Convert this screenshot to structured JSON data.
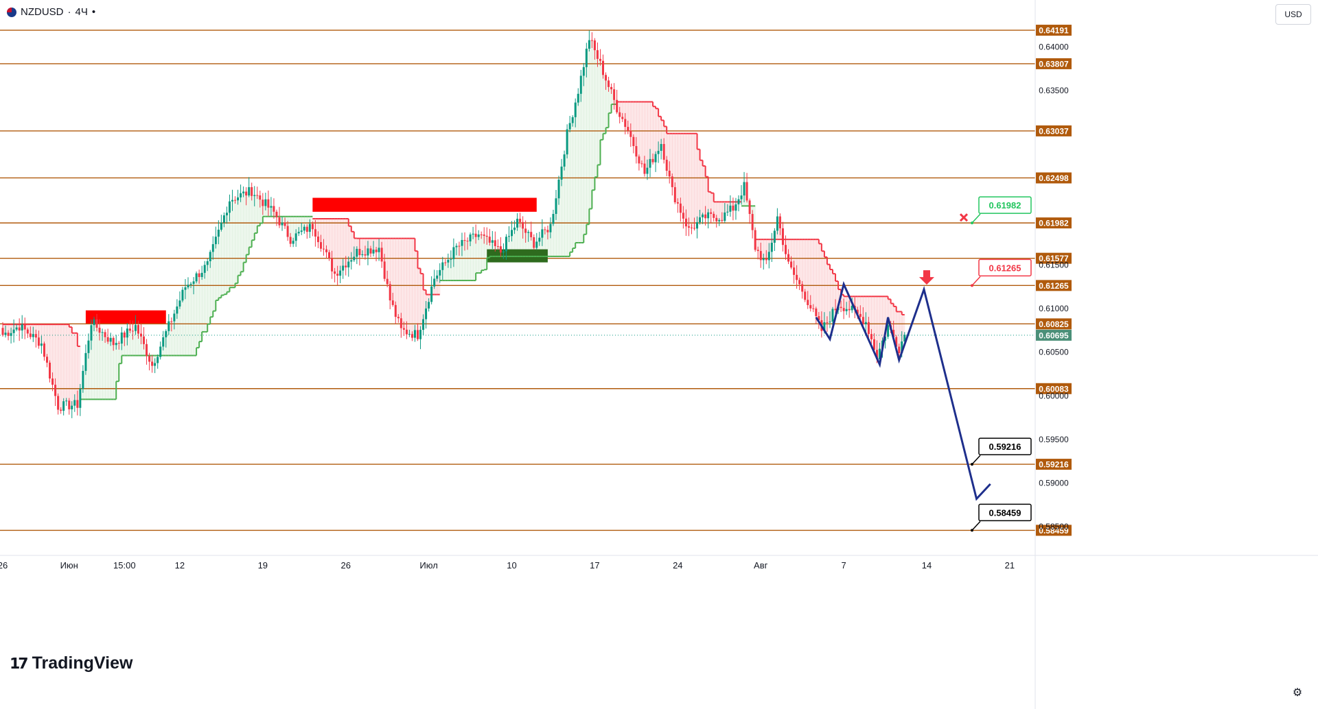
{
  "header": {
    "symbol": "NZDUSD",
    "sep": "·",
    "interval": "4Ч",
    "menu_glyph": "•"
  },
  "currency_button": "USD",
  "logo_text": "TradingView",
  "colors": {
    "level": "#b05a0c",
    "bull": "#089981",
    "bear": "#f23645",
    "trend_up": "#4caf50",
    "trend_down": "#f23645",
    "projection": "#1e2f8c",
    "zone_red": "#ff0000",
    "zone_green": "#2e6b1e"
  },
  "chart_data": {
    "type": "candlestick",
    "symbol": "NZDUSD",
    "ylim": [
      0.5836,
      0.6427
    ],
    "price_ticks": [
      "0.64000",
      "0.63500",
      "0.61500",
      "0.61000",
      "0.60500",
      "0.60000",
      "0.59500",
      "0.59000",
      "0.58500"
    ],
    "x_ticks": [
      {
        "label": "26",
        "i": 0
      },
      {
        "label": "Июн",
        "i": 24
      },
      {
        "label": "15:00",
        "i": 44
      },
      {
        "label": "12",
        "i": 64
      },
      {
        "label": "19",
        "i": 94
      },
      {
        "label": "26",
        "i": 124
      },
      {
        "label": "Июл",
        "i": 154
      },
      {
        "label": "10",
        "i": 184
      },
      {
        "label": "17",
        "i": 214
      },
      {
        "label": "24",
        "i": 244
      },
      {
        "label": "Авг",
        "i": 274
      },
      {
        "label": "7",
        "i": 304
      },
      {
        "label": "14",
        "i": 334
      },
      {
        "label": "21",
        "i": 364
      }
    ],
    "levels": [
      "0.64191",
      "0.63807",
      "0.63037",
      "0.62498",
      "0.61982",
      "0.61577",
      "0.61265",
      "0.60825",
      "0.60083",
      "0.59216",
      "0.58459"
    ],
    "last_price": "0.60695",
    "callouts": [
      {
        "label": "0.61982",
        "price": 0.61982,
        "color": "#22c55e",
        "marker": "x"
      },
      {
        "label": "0.61265",
        "price": 0.61265,
        "color": "#f23645",
        "marker": ""
      },
      {
        "label": "0.59216",
        "price": 0.59216,
        "color": "#000000",
        "marker": ""
      },
      {
        "label": "0.58459",
        "price": 0.58459,
        "color": "#000000",
        "marker": ""
      }
    ],
    "zones": [
      {
        "color": "red",
        "i0": 30,
        "i1": 59,
        "p0": 0.6083,
        "p1": 0.6098
      },
      {
        "color": "red",
        "i0": 112,
        "i1": 193,
        "p0": 0.6211,
        "p1": 0.6227
      },
      {
        "color": "green",
        "i0": 175,
        "i1": 197,
        "p0": 0.6153,
        "p1": 0.6168
      }
    ],
    "projection": [
      {
        "i": 294,
        "p": 0.609
      },
      {
        "i": 299,
        "p": 0.6065
      },
      {
        "i": 304,
        "p": 0.6128
      },
      {
        "i": 317,
        "p": 0.6036
      },
      {
        "i": 320,
        "p": 0.609
      },
      {
        "i": 324,
        "p": 0.6041
      },
      {
        "i": 333,
        "p": 0.6122
      },
      {
        "i": 352,
        "p": 0.5882
      },
      {
        "i": 357,
        "p": 0.5899
      }
    ],
    "anchors": [
      {
        "i": 0,
        "p": 0.607
      },
      {
        "i": 6,
        "p": 0.608
      },
      {
        "i": 14,
        "p": 0.606
      },
      {
        "i": 20,
        "p": 0.5988
      },
      {
        "i": 27,
        "p": 0.599
      },
      {
        "i": 32,
        "p": 0.6085
      },
      {
        "i": 40,
        "p": 0.606
      },
      {
        "i": 48,
        "p": 0.608
      },
      {
        "i": 54,
        "p": 0.6035
      },
      {
        "i": 60,
        "p": 0.608
      },
      {
        "i": 66,
        "p": 0.6125
      },
      {
        "i": 74,
        "p": 0.615
      },
      {
        "i": 82,
        "p": 0.6225
      },
      {
        "i": 90,
        "p": 0.6235
      },
      {
        "i": 98,
        "p": 0.621
      },
      {
        "i": 104,
        "p": 0.618
      },
      {
        "i": 112,
        "p": 0.6195
      },
      {
        "i": 120,
        "p": 0.614
      },
      {
        "i": 128,
        "p": 0.6165
      },
      {
        "i": 136,
        "p": 0.617
      },
      {
        "i": 140,
        "p": 0.611
      },
      {
        "i": 144,
        "p": 0.6075
      },
      {
        "i": 150,
        "p": 0.607
      },
      {
        "i": 156,
        "p": 0.6135
      },
      {
        "i": 164,
        "p": 0.617
      },
      {
        "i": 172,
        "p": 0.6185
      },
      {
        "i": 180,
        "p": 0.6165
      },
      {
        "i": 186,
        "p": 0.62
      },
      {
        "i": 192,
        "p": 0.6175
      },
      {
        "i": 198,
        "p": 0.6195
      },
      {
        "i": 204,
        "p": 0.63
      },
      {
        "i": 208,
        "p": 0.635
      },
      {
        "i": 212,
        "p": 0.641
      },
      {
        "i": 216,
        "p": 0.638
      },
      {
        "i": 222,
        "p": 0.633
      },
      {
        "i": 226,
        "p": 0.6305
      },
      {
        "i": 232,
        "p": 0.6255
      },
      {
        "i": 238,
        "p": 0.629
      },
      {
        "i": 242,
        "p": 0.6235
      },
      {
        "i": 248,
        "p": 0.619
      },
      {
        "i": 254,
        "p": 0.6205
      },
      {
        "i": 260,
        "p": 0.6205
      },
      {
        "i": 264,
        "p": 0.6215
      },
      {
        "i": 268,
        "p": 0.624
      },
      {
        "i": 272,
        "p": 0.617
      },
      {
        "i": 276,
        "p": 0.615
      },
      {
        "i": 280,
        "p": 0.6205
      },
      {
        "i": 284,
        "p": 0.615
      },
      {
        "i": 290,
        "p": 0.6115
      },
      {
        "i": 296,
        "p": 0.6075
      },
      {
        "i": 302,
        "p": 0.6105
      },
      {
        "i": 306,
        "p": 0.61
      },
      {
        "i": 312,
        "p": 0.6085
      },
      {
        "i": 316,
        "p": 0.6045
      },
      {
        "i": 320,
        "p": 0.608
      },
      {
        "i": 324,
        "p": 0.6055
      },
      {
        "i": 326,
        "p": 0.607
      }
    ],
    "trend_segments": [
      {
        "dir": "down",
        "i0": 0,
        "i1": 28
      },
      {
        "dir": "up",
        "i0": 28,
        "i1": 112
      },
      {
        "dir": "down",
        "i0": 112,
        "i1": 158
      },
      {
        "dir": "up",
        "i0": 158,
        "i1": 222
      },
      {
        "dir": "down",
        "i0": 222,
        "i1": 267
      },
      {
        "dir": "up",
        "i0": 267,
        "i1": 272
      },
      {
        "dir": "down",
        "i0": 272,
        "i1": 327
      }
    ]
  }
}
